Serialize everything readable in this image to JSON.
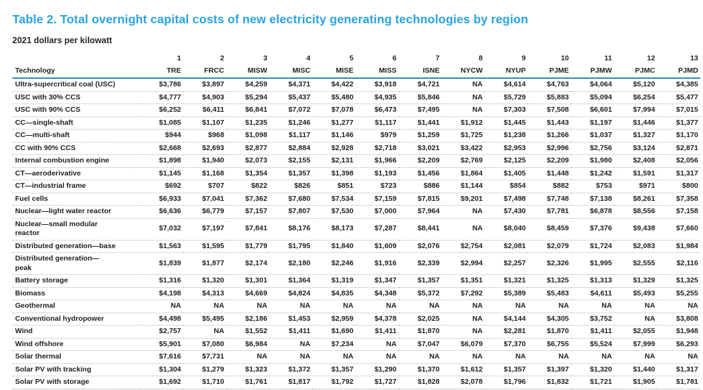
{
  "title": "Table 2. Total overnight capital costs of new electricity generating technologies by region",
  "subtitle": "2021 dollars per kilowatt",
  "colors": {
    "title_blue": "#29A3E0",
    "header_rule_blue": "#2E86C1",
    "row_divider_gray": "#b3b3b3"
  },
  "table": {
    "technology_header": "Technology",
    "columns": [
      {
        "num": "1",
        "code": "TRE"
      },
      {
        "num": "2",
        "code": "FRCC"
      },
      {
        "num": "3",
        "code": "MISW"
      },
      {
        "num": "4",
        "code": "MISC"
      },
      {
        "num": "5",
        "code": "MISE"
      },
      {
        "num": "6",
        "code": "MISS"
      },
      {
        "num": "7",
        "code": "ISNE"
      },
      {
        "num": "8",
        "code": "NYCW"
      },
      {
        "num": "9",
        "code": "NYUP"
      },
      {
        "num": "10",
        "code": "PJME"
      },
      {
        "num": "11",
        "code": "PJMW"
      },
      {
        "num": "12",
        "code": "PJMC"
      },
      {
        "num": "13",
        "code": "PJMD"
      }
    ],
    "rows": [
      {
        "tech": "Ultra-supercritical coal (USC)",
        "values": [
          "$3,786",
          "$3,897",
          "$4,259",
          "$4,371",
          "$4,422",
          "$3,918",
          "$4,721",
          "NA",
          "$4,614",
          "$4,763",
          "$4,064",
          "$5,120",
          "$4,385"
        ]
      },
      {
        "tech": "USC with 30% CCS",
        "values": [
          "$4,777",
          "$4,903",
          "$5,294",
          "$5,437",
          "$5,480",
          "$4,935",
          "$5,846",
          "NA",
          "$5,729",
          "$5,883",
          "$5,094",
          "$6,254",
          "$5,477"
        ]
      },
      {
        "tech": "USC with 90% CCS",
        "values": [
          "$6,252",
          "$6,411",
          "$6,841",
          "$7,072",
          "$7,078",
          "$6,473",
          "$7,495",
          "NA",
          "$7,303",
          "$7,508",
          "$6,601",
          "$7,994",
          "$7,015"
        ]
      },
      {
        "tech": "CC—single-shaft",
        "values": [
          "$1,085",
          "$1,107",
          "$1,235",
          "$1,246",
          "$1,277",
          "$1,117",
          "$1,441",
          "$1,912",
          "$1,445",
          "$1,443",
          "$1,197",
          "$1,446",
          "$1,377"
        ]
      },
      {
        "tech": "CC—multi-shaft",
        "values": [
          "$944",
          "$968",
          "$1,098",
          "$1,117",
          "$1,146",
          "$979",
          "$1,259",
          "$1,725",
          "$1,238",
          "$1,266",
          "$1,037",
          "$1,327",
          "$1,170"
        ]
      },
      {
        "tech": "CC with 90% CCS",
        "values": [
          "$2,668",
          "$2,693",
          "$2,877",
          "$2,884",
          "$2,928",
          "$2,718",
          "$3,021",
          "$3,422",
          "$2,953",
          "$2,996",
          "$2,756",
          "$3,124",
          "$2,871"
        ]
      },
      {
        "tech": "Internal combustion engine",
        "values": [
          "$1,898",
          "$1,940",
          "$2,073",
          "$2,155",
          "$2,131",
          "$1,966",
          "$2,209",
          "$2,769",
          "$2,125",
          "$2,209",
          "$1,980",
          "$2,408",
          "$2,056"
        ]
      },
      {
        "tech": "CT—aeroderivative",
        "values": [
          "$1,145",
          "$1,168",
          "$1,354",
          "$1,357",
          "$1,398",
          "$1,193",
          "$1,456",
          "$1,864",
          "$1,405",
          "$1,448",
          "$1,242",
          "$1,591",
          "$1,317"
        ]
      },
      {
        "tech": "CT—industrial frame",
        "values": [
          "$692",
          "$707",
          "$822",
          "$826",
          "$851",
          "$723",
          "$886",
          "$1,144",
          "$854",
          "$882",
          "$753",
          "$971",
          "$800"
        ]
      },
      {
        "tech": "Fuel cells",
        "values": [
          "$6,933",
          "$7,041",
          "$7,362",
          "$7,680",
          "$7,534",
          "$7,159",
          "$7,815",
          "$9,201",
          "$7,498",
          "$7,748",
          "$7,138",
          "$8,261",
          "$7,358"
        ]
      },
      {
        "tech": "Nuclear—light water reactor",
        "values": [
          "$6,636",
          "$6,779",
          "$7,157",
          "$7,807",
          "$7,530",
          "$7,000",
          "$7,964",
          "NA",
          "$7,430",
          "$7,781",
          "$6,878",
          "$8,556",
          "$7,158"
        ]
      },
      {
        "tech": "Nuclear—small modular\nreactor",
        "values": [
          "$7,032",
          "$7,197",
          "$7,841",
          "$8,176",
          "$8,173",
          "$7,287",
          "$8,441",
          "NA",
          "$8,040",
          "$8,459",
          "$7,376",
          "$9,438",
          "$7,660"
        ]
      },
      {
        "tech": "Distributed generation—base",
        "values": [
          "$1,563",
          "$1,595",
          "$1,779",
          "$1,795",
          "$1,840",
          "$1,609",
          "$2,076",
          "$2,754",
          "$2,081",
          "$2,079",
          "$1,724",
          "$2,083",
          "$1,984"
        ]
      },
      {
        "tech": "Distributed generation—\npeak",
        "values": [
          "$1,839",
          "$1,877",
          "$2,174",
          "$2,180",
          "$2,246",
          "$1,916",
          "$2,339",
          "$2,994",
          "$2,257",
          "$2,326",
          "$1,995",
          "$2,555",
          "$2,116"
        ]
      },
      {
        "tech": "Battery storage",
        "values": [
          "$1,316",
          "$1,320",
          "$1,301",
          "$1,364",
          "$1,319",
          "$1,347",
          "$1,357",
          "$1,351",
          "$1,321",
          "$1,325",
          "$1,313",
          "$1,329",
          "$1,325"
        ]
      },
      {
        "tech": "Biomass",
        "values": [
          "$4,198",
          "$4,313",
          "$4,669",
          "$4,824",
          "$4,835",
          "$4,348",
          "$5,372",
          "$7,292",
          "$5,389",
          "$5,483",
          "$4,611",
          "$5,493",
          "$5,255"
        ]
      },
      {
        "tech": "Geothermal",
        "values": [
          "NA",
          "NA",
          "NA",
          "NA",
          "NA",
          "NA",
          "NA",
          "NA",
          "NA",
          "NA",
          "NA",
          "NA",
          "NA"
        ]
      },
      {
        "tech": "Conventional hydropower",
        "values": [
          "$4,498",
          "$5,495",
          "$2,186",
          "$1,453",
          "$2,959",
          "$4,378",
          "$2,025",
          "NA",
          "$4,144",
          "$4,305",
          "$3,752",
          "NA",
          "$3,808"
        ]
      },
      {
        "tech": "Wind",
        "values": [
          "$2,757",
          "NA",
          "$1,552",
          "$1,411",
          "$1,690",
          "$1,411",
          "$1,870",
          "NA",
          "$2,281",
          "$1,870",
          "$1,411",
          "$2,055",
          "$1,948"
        ]
      },
      {
        "tech": "Wind offshore",
        "values": [
          "$5,901",
          "$7,080",
          "$6,984",
          "NA",
          "$7,234",
          "NA",
          "$7,047",
          "$6,079",
          "$7,370",
          "$6,755",
          "$5,524",
          "$7,999",
          "$6,293"
        ]
      },
      {
        "tech": "Solar thermal",
        "values": [
          "$7,616",
          "$7,731",
          "NA",
          "NA",
          "NA",
          "NA",
          "NA",
          "NA",
          "NA",
          "NA",
          "NA",
          "NA",
          "NA"
        ]
      },
      {
        "tech": "Solar PV with tracking",
        "values": [
          "$1,304",
          "$1,279",
          "$1,323",
          "$1,372",
          "$1,357",
          "$1,290",
          "$1,370",
          "$1,612",
          "$1,357",
          "$1,397",
          "$1,320",
          "$1,440",
          "$1,317"
        ]
      },
      {
        "tech": "Solar PV with storage",
        "values": [
          "$1,692",
          "$1,710",
          "$1,761",
          "$1,817",
          "$1,792",
          "$1,727",
          "$1,828",
          "$2,078",
          "$1,796",
          "$1,832",
          "$1,721",
          "$1,905",
          "$1,781"
        ]
      }
    ]
  }
}
